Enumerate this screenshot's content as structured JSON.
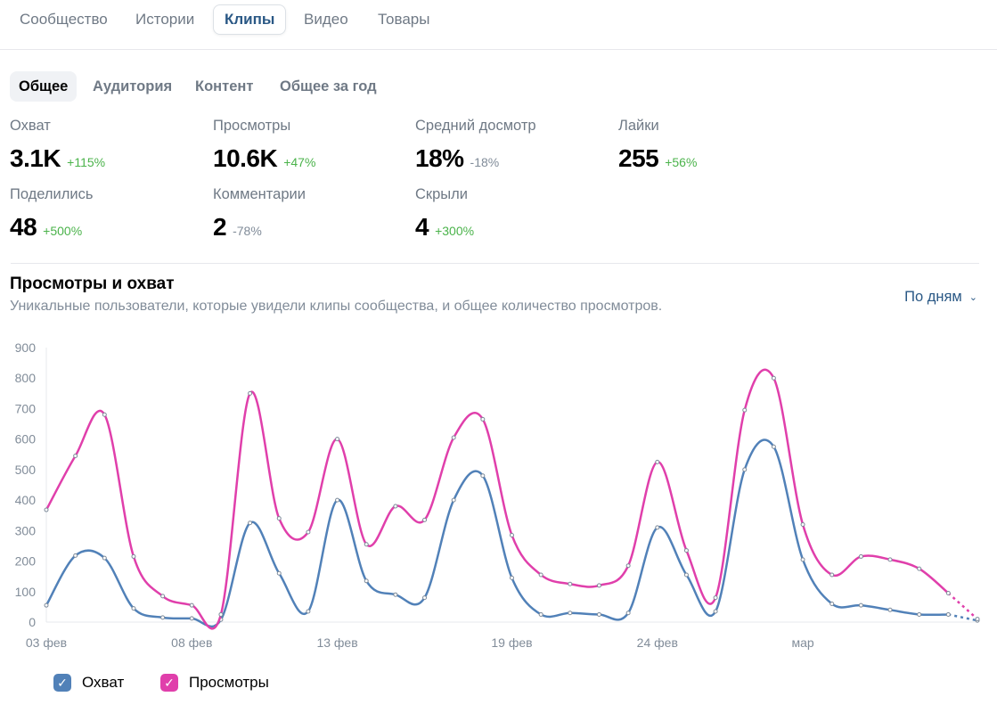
{
  "top_tabs": [
    {
      "label": "Сообщество"
    },
    {
      "label": "Истории"
    },
    {
      "label": "Клипы"
    },
    {
      "label": "Видео"
    },
    {
      "label": "Товары"
    }
  ],
  "sub_tabs": [
    {
      "label": "Общее"
    },
    {
      "label": "Аудитория"
    },
    {
      "label": "Контент"
    },
    {
      "label": "Общее за год"
    }
  ],
  "metrics": [
    {
      "label": "Охват",
      "value": "3.1K",
      "delta": "+115%"
    },
    {
      "label": "Просмотры",
      "value": "10.6K",
      "delta": "+47%"
    },
    {
      "label": "Средний досмотр",
      "value": "18%",
      "delta": "-18%"
    },
    {
      "label": "Лайки",
      "value": "255",
      "delta": "+56%"
    },
    {
      "label": "Поделились",
      "value": "48",
      "delta": "+500%"
    },
    {
      "label": "Комментарии",
      "value": "2",
      "delta": "-78%"
    },
    {
      "label": "Скрыли",
      "value": "4",
      "delta": "+300%"
    }
  ],
  "chart_section": {
    "title": "Просмотры и охват",
    "subtitle": "Уникальные пользователи, которые увидели клипы сообщества, и общее количество просмотров.",
    "period_label": "По дням"
  },
  "legend": [
    {
      "label": "Охват"
    },
    {
      "label": "Просмотры"
    }
  ],
  "icons": {
    "period_chevron": "chevron-down-icon",
    "legend_check": "check-icon"
  },
  "colors": {
    "reach": "#5181b8",
    "views": "#e03fab",
    "positive_delta": "#4bb34b",
    "negative_delta": "#818c99",
    "link": "#2a5885"
  },
  "chart_data": {
    "type": "line",
    "title": "Просмотры и охват",
    "xlabel": "",
    "ylabel": "",
    "ylim": [
      0,
      900
    ],
    "yticks": [
      0,
      100,
      200,
      300,
      400,
      500,
      600,
      700,
      800,
      900
    ],
    "xtick_labels": [
      {
        "day": 0,
        "label": "03 фев"
      },
      {
        "day": 5,
        "label": "08 фев"
      },
      {
        "day": 10,
        "label": "13 фев"
      },
      {
        "day": 16,
        "label": "19 фев"
      },
      {
        "day": 21,
        "label": "24 фев"
      },
      {
        "day": 26,
        "label": "мар"
      }
    ],
    "x": [
      0,
      1,
      2,
      3,
      4,
      5,
      6,
      7,
      8,
      9,
      10,
      11,
      12,
      13,
      14,
      15,
      16,
      17,
      18,
      19,
      20,
      21,
      22,
      23,
      24,
      25,
      26,
      27,
      28,
      29,
      30,
      31,
      32
    ],
    "series": [
      {
        "name": "Охват",
        "values": [
          55,
          218,
          210,
          45,
          15,
          12,
          8,
          325,
          160,
          35,
          400,
          135,
          90,
          80,
          400,
          480,
          145,
          25,
          30,
          25,
          30,
          310,
          155,
          35,
          500,
          575,
          205,
          60,
          55,
          40,
          25,
          25,
          5
        ]
      },
      {
        "name": "Просмотры",
        "values": [
          368,
          545,
          680,
          215,
          85,
          55,
          25,
          750,
          340,
          295,
          600,
          255,
          380,
          335,
          605,
          665,
          285,
          155,
          125,
          120,
          185,
          525,
          235,
          80,
          695,
          800,
          320,
          155,
          215,
          205,
          175,
          95,
          10
        ]
      }
    ]
  }
}
